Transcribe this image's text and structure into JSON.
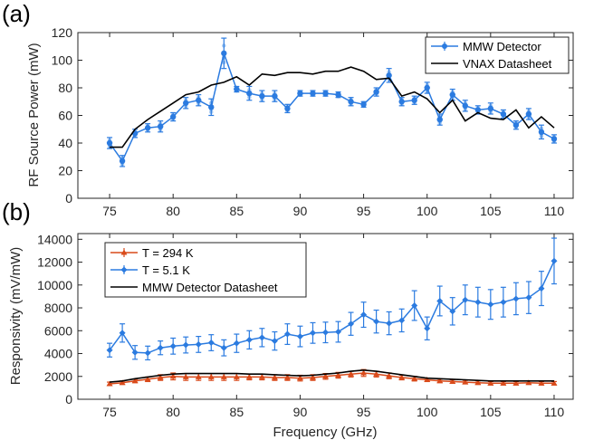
{
  "colors": {
    "mmw": "#2b7be0",
    "mmw_light": "#8fbcf0",
    "vnax": "#000000",
    "t294": "#d94a1a",
    "t51": "#2b7be0",
    "dsheet": "#000000"
  },
  "chart_data": [
    {
      "type": "line",
      "panel_label": "(a)",
      "xlabel": "",
      "ylabel": "RF Source Power (mW)",
      "xlim": [
        72.5,
        111.5
      ],
      "ylim": [
        0,
        120
      ],
      "xticks": [
        75,
        80,
        85,
        90,
        95,
        100,
        105,
        110
      ],
      "yticks": [
        0,
        20,
        40,
        60,
        80,
        100,
        120
      ],
      "legend_position": "top-right",
      "series": [
        {
          "name": "MMW Detector",
          "style": "marker-errorbar",
          "x": [
            75,
            76,
            77,
            78,
            79,
            80,
            81,
            82,
            83,
            84,
            85,
            86,
            87,
            88,
            89,
            90,
            91,
            92,
            93,
            94,
            95,
            96,
            97,
            98,
            99,
            100,
            101,
            102,
            103,
            104,
            105,
            106,
            107,
            108,
            109,
            110
          ],
          "y": [
            40,
            27,
            47,
            51,
            52,
            59,
            69,
            71,
            66,
            105,
            79,
            76,
            74,
            74,
            65,
            76,
            76,
            76,
            75,
            70,
            68,
            77,
            89,
            70,
            71,
            80,
            57,
            75,
            67,
            64,
            65,
            61,
            53,
            61,
            48,
            43
          ],
          "err": [
            4,
            4,
            3,
            3,
            4,
            3,
            4,
            4,
            6,
            11,
            2,
            5,
            4,
            4,
            3,
            2,
            2,
            2,
            2,
            3,
            2,
            3,
            5,
            3,
            3,
            4,
            4,
            4,
            4,
            3,
            4,
            3,
            3,
            4,
            5,
            3
          ]
        },
        {
          "name": "VNAX Datasheet",
          "style": "line",
          "x": [
            75,
            76,
            77,
            78,
            79,
            80,
            81,
            82,
            83,
            84,
            85,
            86,
            87,
            88,
            89,
            90,
            91,
            92,
            93,
            94,
            95,
            96,
            97,
            98,
            99,
            100,
            101,
            102,
            103,
            104,
            105,
            106,
            107,
            108,
            109,
            110
          ],
          "y": [
            37,
            37,
            50,
            57,
            63,
            69,
            75,
            77,
            82,
            84,
            88,
            82,
            90,
            89,
            91,
            91,
            90,
            92,
            92,
            95,
            92,
            86,
            87,
            74,
            77,
            72,
            62,
            71,
            56,
            62,
            58,
            57,
            64,
            51,
            59,
            51
          ]
        }
      ]
    },
    {
      "type": "line",
      "panel_label": "(b)",
      "xlabel": "Frequency (GHz)",
      "ylabel": "Responsivity (mV/mW)",
      "xlim": [
        72.5,
        111.5
      ],
      "ylim": [
        0,
        14500
      ],
      "xticks": [
        75,
        80,
        85,
        90,
        95,
        100,
        105,
        110
      ],
      "yticks": [
        0,
        2000,
        4000,
        6000,
        8000,
        10000,
        12000,
        14000
      ],
      "legend_position": "top-left",
      "series": [
        {
          "name": "T = 294 K",
          "style": "marker-errorbar",
          "x": [
            75,
            76,
            77,
            78,
            79,
            80,
            81,
            82,
            83,
            84,
            85,
            86,
            87,
            88,
            89,
            90,
            91,
            92,
            93,
            94,
            95,
            96,
            97,
            98,
            99,
            100,
            101,
            102,
            103,
            104,
            105,
            106,
            107,
            108,
            109,
            110
          ],
          "y": [
            1350,
            1450,
            1600,
            1750,
            1900,
            2000,
            1950,
            1950,
            1950,
            1950,
            1950,
            1950,
            1950,
            1900,
            1900,
            1850,
            1900,
            2000,
            2100,
            2200,
            2300,
            2200,
            2050,
            1900,
            1800,
            1700,
            1600,
            1550,
            1500,
            1450,
            1400,
            1400,
            1400,
            1450,
            1400,
            1400
          ],
          "err": [
            150,
            150,
            150,
            200,
            250,
            300,
            300,
            300,
            300,
            300,
            300,
            250,
            250,
            250,
            250,
            250,
            250,
            250,
            250,
            250,
            300,
            250,
            250,
            200,
            200,
            150,
            150,
            150,
            150,
            150,
            150,
            150,
            150,
            150,
            150,
            150
          ]
        },
        {
          "name": "T = 5.1 K",
          "style": "marker-errorbar",
          "x": [
            75,
            76,
            77,
            78,
            79,
            80,
            81,
            82,
            83,
            84,
            85,
            86,
            87,
            88,
            89,
            90,
            91,
            92,
            93,
            94,
            95,
            96,
            97,
            98,
            99,
            100,
            101,
            102,
            103,
            104,
            105,
            106,
            107,
            108,
            109,
            110
          ],
          "y": [
            4300,
            5800,
            4100,
            4050,
            4500,
            4650,
            4750,
            4800,
            4950,
            4500,
            4900,
            5200,
            5400,
            5100,
            5700,
            5500,
            5800,
            5850,
            5900,
            6600,
            7400,
            6800,
            6650,
            6900,
            8200,
            6200,
            8600,
            7700,
            8700,
            8500,
            8300,
            8500,
            8800,
            8900,
            9700,
            12100
          ],
          "err": [
            600,
            800,
            600,
            600,
            600,
            700,
            700,
            700,
            700,
            700,
            800,
            800,
            800,
            800,
            900,
            900,
            900,
            900,
            900,
            1000,
            1100,
            1000,
            1000,
            1000,
            1300,
            1000,
            1300,
            1200,
            1300,
            1300,
            1300,
            1300,
            1400,
            1400,
            1500,
            2000
          ]
        },
        {
          "name": "MMW Detector Datasheet",
          "style": "line",
          "x": [
            75,
            76,
            77,
            78,
            79,
            80,
            81,
            82,
            83,
            84,
            85,
            86,
            87,
            88,
            89,
            90,
            91,
            92,
            93,
            94,
            95,
            96,
            97,
            98,
            99,
            100,
            101,
            102,
            103,
            104,
            105,
            106,
            107,
            108,
            109,
            110
          ],
          "y": [
            1500,
            1600,
            1800,
            1950,
            2100,
            2200,
            2250,
            2250,
            2250,
            2250,
            2250,
            2200,
            2200,
            2150,
            2100,
            2050,
            2100,
            2200,
            2300,
            2450,
            2550,
            2450,
            2300,
            2150,
            2000,
            1850,
            1800,
            1750,
            1700,
            1650,
            1600,
            1600,
            1600,
            1600,
            1600,
            1600
          ]
        }
      ]
    }
  ]
}
